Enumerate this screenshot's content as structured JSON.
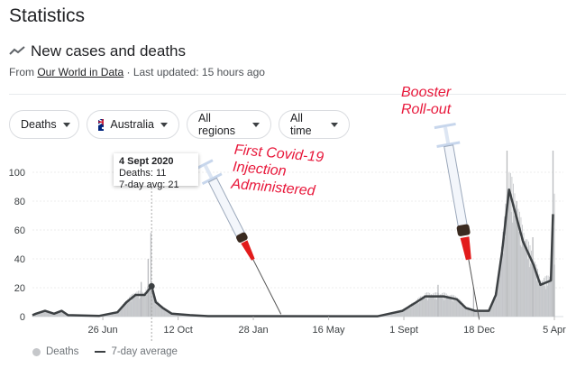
{
  "header": {
    "title": "Statistics",
    "subtitle": "New cases and deaths",
    "source_prefix": "From",
    "source_link": "Our World in Data",
    "updated": "· Last updated: 15 hours ago"
  },
  "filters": [
    {
      "label": "Deaths"
    },
    {
      "label": "Australia",
      "icon": "australia-flag-icon"
    },
    {
      "label": "All regions"
    },
    {
      "label": "All time"
    }
  ],
  "annotations": {
    "first_injection": [
      "First Covid-19",
      "Injection",
      "Administered"
    ],
    "booster": [
      "Booster",
      "Roll-out"
    ]
  },
  "tooltip": {
    "date": "4 Sept 2020",
    "deaths": "Deaths: 11",
    "avg": "7-day avg: 21"
  },
  "colors": {
    "bars": "#c5c7ca",
    "line": "#3c4043",
    "annotation": "#e8173a"
  },
  "chart_data": {
    "type": "bar",
    "title": "New cases and deaths",
    "xlim": [
      "2020-03-17",
      "2022-04-05"
    ],
    "ylim": [
      0,
      110
    ],
    "yticks": [
      0,
      20,
      40,
      60,
      80,
      100
    ],
    "xticks": [
      {
        "date": "2020-06-26",
        "label": "26 Jun"
      },
      {
        "date": "2020-10-12",
        "label": "12 Oct"
      },
      {
        "date": "2021-01-28",
        "label": "28 Jan"
      },
      {
        "date": "2021-05-16",
        "label": "16 May"
      },
      {
        "date": "2021-09-01",
        "label": "1 Sept"
      },
      {
        "date": "2021-12-18",
        "label": "18 Dec"
      },
      {
        "date": "2022-04-05",
        "label": "5 Apr"
      }
    ],
    "legend": [
      "Deaths",
      "7-day average"
    ],
    "legend_position": "bottom-left",
    "series_avg": [
      [
        "2020-03-17",
        1
      ],
      [
        "2020-03-22",
        2
      ],
      [
        "2020-04-04",
        4
      ],
      [
        "2020-04-17",
        2
      ],
      [
        "2020-04-28",
        4
      ],
      [
        "2020-05-07",
        1
      ],
      [
        "2020-06-21",
        0.5
      ],
      [
        "2020-07-17",
        3
      ],
      [
        "2020-07-30",
        10
      ],
      [
        "2020-08-12",
        15
      ],
      [
        "2020-08-25",
        15
      ],
      [
        "2020-09-04",
        21
      ],
      [
        "2020-09-10",
        10
      ],
      [
        "2020-09-20",
        6
      ],
      [
        "2020-10-03",
        2
      ],
      [
        "2020-10-29",
        1
      ],
      [
        "2020-11-24",
        0.3
      ],
      [
        "2021-07-25",
        0.2
      ],
      [
        "2021-08-11",
        2
      ],
      [
        "2021-08-30",
        4
      ],
      [
        "2021-09-19",
        10
      ],
      [
        "2021-10-02",
        14
      ],
      [
        "2021-10-28",
        14
      ],
      [
        "2021-11-16",
        12
      ],
      [
        "2021-11-29",
        6
      ],
      [
        "2021-12-12",
        4
      ],
      [
        "2022-01-01",
        4
      ],
      [
        "2022-01-11",
        15
      ],
      [
        "2022-01-20",
        45
      ],
      [
        "2022-01-30",
        88
      ],
      [
        "2022-02-09",
        70
      ],
      [
        "2022-02-19",
        52
      ],
      [
        "2022-03-06",
        36
      ],
      [
        "2022-03-16",
        22
      ],
      [
        "2022-03-26",
        24
      ],
      [
        "2022-03-31",
        25
      ],
      [
        "2022-04-03",
        71
      ]
    ],
    "daily_spikes": [
      [
        "2020-08-30",
        40
      ],
      [
        "2020-09-03",
        58
      ],
      [
        "2020-08-20",
        24
      ],
      [
        "2021-10-20",
        22
      ],
      [
        "2021-12-10",
        20
      ],
      [
        "2022-01-27",
        115
      ],
      [
        "2022-02-10",
        80
      ],
      [
        "2022-03-05",
        55
      ],
      [
        "2022-04-03",
        115
      ],
      [
        "2022-04-05",
        36
      ]
    ],
    "highlight": {
      "date": "2020-09-04",
      "value": 21
    }
  }
}
